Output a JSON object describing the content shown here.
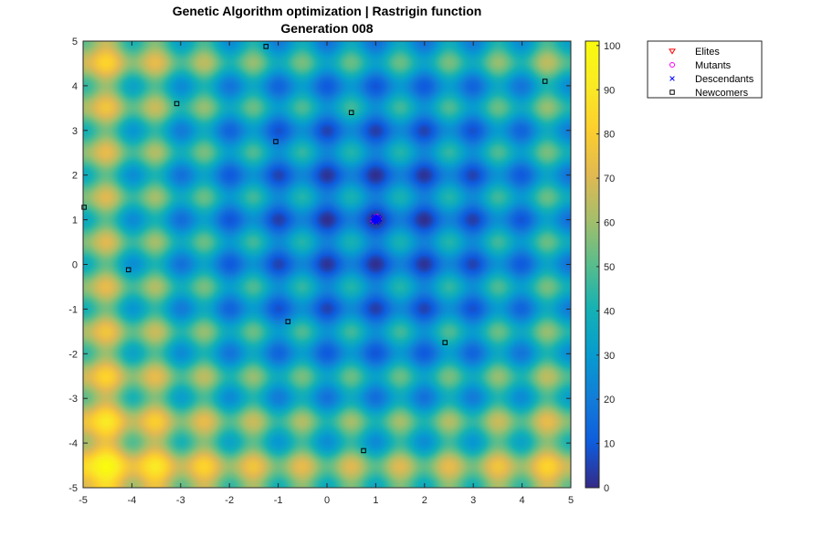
{
  "chart_data": {
    "type": "heatmap",
    "title": "Genetic Algorithm optimization | Rastrigin function",
    "subtitle": "Generation 008",
    "xlabel": "",
    "ylabel": "",
    "xlim": [
      -5,
      5
    ],
    "ylim": [
      -5,
      5
    ],
    "x_ticks": [
      "-5",
      "-4",
      "-3",
      "-2",
      "-1",
      "0",
      "1",
      "2",
      "3",
      "4",
      "5"
    ],
    "y_ticks": [
      "5",
      "4",
      "3",
      "2",
      "1",
      "0",
      "-1",
      "-2",
      "-3",
      "-4",
      "-5"
    ],
    "surface": {
      "function": "Rastrigin",
      "center": [
        1,
        1
      ],
      "A": 10,
      "colormap": "parula"
    },
    "colorbar": {
      "clim": [
        0,
        101
      ],
      "ticks": [
        "100",
        "90",
        "80",
        "70",
        "60",
        "50",
        "40",
        "30",
        "20",
        "10",
        "0"
      ]
    },
    "legend_position": "outside-top-right",
    "series": [
      {
        "name": "Elites",
        "marker": "triangle-down",
        "color": "#ff0000",
        "points": [
          [
            1.0,
            1.02
          ],
          [
            0.98,
            1.0
          ],
          [
            1.03,
            0.99
          ]
        ]
      },
      {
        "name": "Mutants",
        "marker": "circle",
        "color": "#ff00ff",
        "points": [
          [
            1.06,
            1.03
          ],
          [
            0.95,
            0.98
          ],
          [
            1.02,
            1.07
          ]
        ]
      },
      {
        "name": "Descendants",
        "marker": "x",
        "color": "#0000ff",
        "points": [
          [
            1.0,
            1.0
          ],
          [
            1.02,
            1.01
          ],
          [
            0.98,
            0.99
          ],
          [
            1.04,
            1.03
          ],
          [
            0.96,
            1.02
          ],
          [
            1.01,
            0.96
          ],
          [
            1.05,
            0.97
          ],
          [
            0.95,
            1.04
          ],
          [
            1.03,
            1.06
          ],
          [
            0.99,
            1.05
          ],
          [
            1.07,
            1.0
          ],
          [
            0.94,
            0.96
          ],
          [
            1.02,
            0.94
          ],
          [
            0.97,
            1.07
          ],
          [
            1.06,
            1.05
          ],
          [
            1.0,
            0.97
          ],
          [
            1.03,
            1.0
          ],
          [
            0.96,
            0.99
          ],
          [
            1.01,
            1.03
          ],
          [
            1.08,
            1.02
          ]
        ]
      },
      {
        "name": "Newcomers",
        "marker": "square",
        "color": "#000000",
        "points": [
          [
            -1.25,
            4.88
          ],
          [
            4.47,
            4.1
          ],
          [
            -3.08,
            3.6
          ],
          [
            0.5,
            3.4
          ],
          [
            -1.05,
            2.75
          ],
          [
            -4.98,
            1.28
          ],
          [
            -4.07,
            -0.12
          ],
          [
            -0.8,
            -1.28
          ],
          [
            2.42,
            -1.75
          ],
          [
            0.75,
            -4.17
          ]
        ]
      }
    ]
  }
}
